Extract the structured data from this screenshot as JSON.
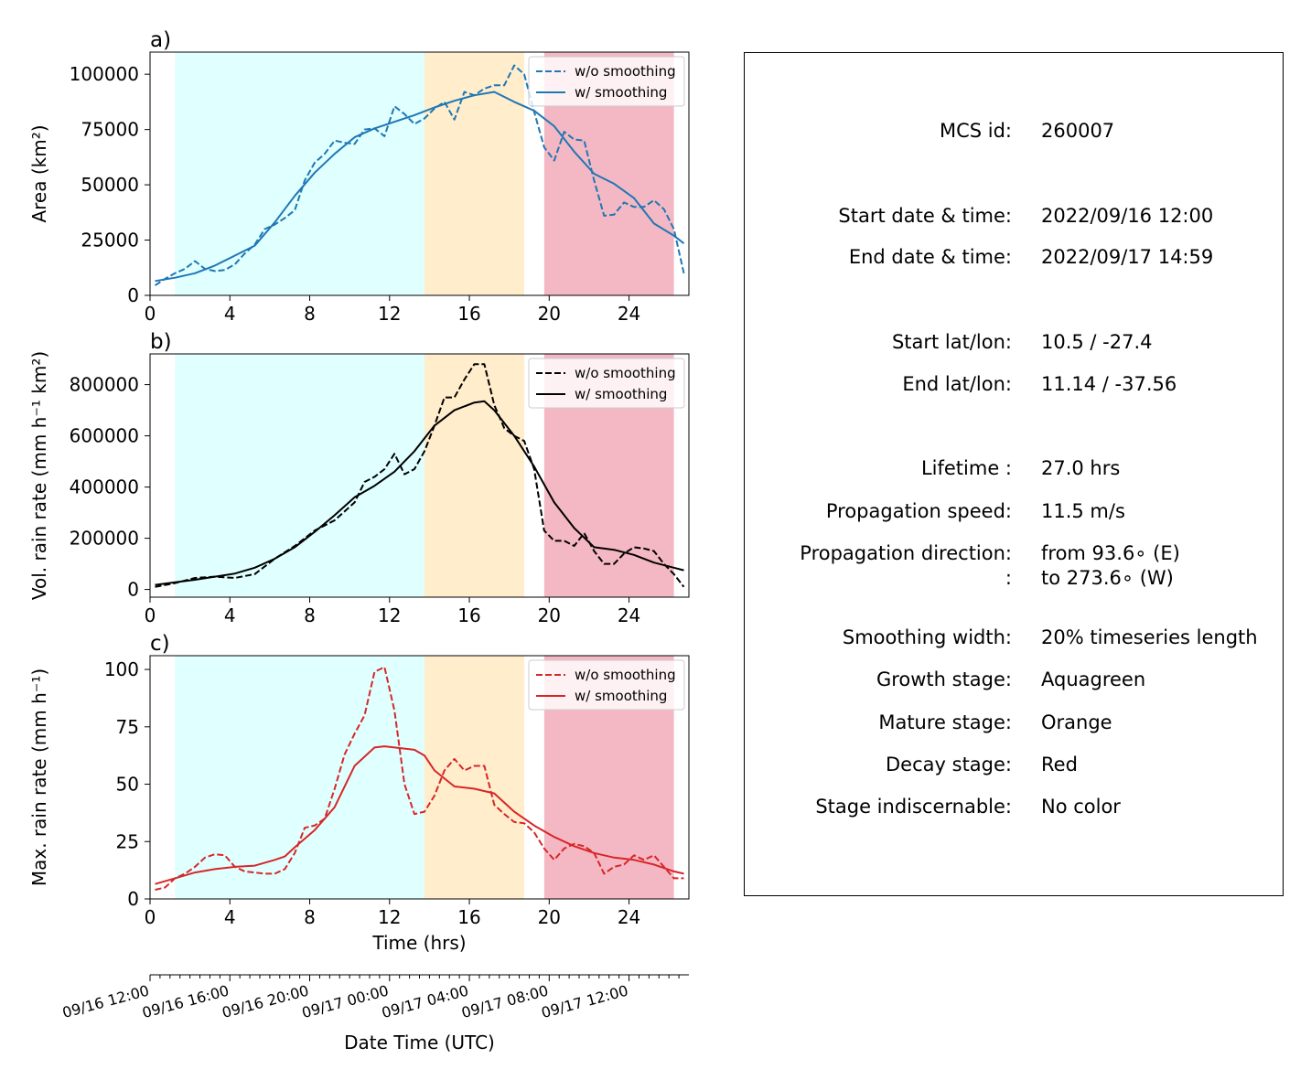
{
  "chart_data": [
    {
      "type": "line",
      "panel_label": "a)",
      "ylabel": "Area  (km²)",
      "xlabel": "",
      "xlim": [
        0,
        27
      ],
      "ylim": [
        0,
        110000
      ],
      "xticks": [
        "0",
        "4",
        "8",
        "12",
        "16",
        "20",
        "24"
      ],
      "yticks": [
        "0",
        "25000",
        "50000",
        "75000",
        "100000"
      ],
      "stages": {
        "growth": [
          1.25,
          13.75
        ],
        "mature": [
          13.75,
          18.75
        ],
        "decay": [
          19.75,
          26.25
        ]
      },
      "legend": "top-right",
      "series": [
        {
          "name": "w/o smoothing",
          "style": "dashed",
          "color": "#1f77b4",
          "x": [
            0.25,
            0.75,
            1.25,
            1.75,
            2.25,
            2.75,
            3.25,
            3.75,
            4.25,
            4.75,
            5.25,
            5.75,
            6.25,
            6.75,
            7.25,
            7.75,
            8.25,
            8.75,
            9.25,
            9.75,
            10.25,
            10.75,
            11.25,
            11.75,
            12.25,
            12.75,
            13.25,
            13.75,
            14.25,
            14.75,
            15.25,
            15.75,
            16.25,
            16.75,
            17.25,
            17.75,
            18.25,
            18.75,
            19.25,
            19.75,
            20.25,
            20.75,
            21.25,
            21.75,
            22.25,
            22.75,
            23.25,
            23.75,
            24.25,
            24.75,
            25.25,
            25.75,
            26.25,
            26.75
          ],
          "y": [
            4500,
            7500,
            10000,
            12000,
            15500,
            12000,
            11000,
            11500,
            14000,
            19000,
            23000,
            30000,
            32000,
            35000,
            38500,
            52000,
            60000,
            64000,
            70000,
            69000,
            68500,
            75000,
            75500,
            72000,
            85500,
            82000,
            77500,
            80000,
            84500,
            87500,
            79500,
            92000,
            90500,
            93500,
            95000,
            95000,
            104000,
            100000,
            83000,
            67000,
            61000,
            74000,
            70500,
            70000,
            52000,
            36000,
            36500,
            42000,
            40000,
            40000,
            43000,
            39000,
            30000,
            10000
          ]
        },
        {
          "name": "w/ smoothing",
          "style": "solid",
          "color": "#1f77b4",
          "x": [
            0.25,
            1.25,
            2.25,
            3.25,
            4.25,
            5.25,
            6.25,
            7.25,
            8.25,
            9.25,
            10.25,
            11.25,
            12.25,
            13.25,
            14.25,
            15.25,
            16.25,
            17.25,
            18.25,
            19.25,
            20.25,
            21.25,
            22.25,
            23.25,
            24.25,
            25.25,
            26.25,
            26.75
          ],
          "y": [
            6500,
            8000,
            10000,
            13500,
            18000,
            22500,
            33000,
            45000,
            55500,
            64000,
            71500,
            75500,
            78500,
            81500,
            85000,
            88000,
            90500,
            92000,
            87500,
            83500,
            76500,
            65000,
            55000,
            50500,
            44000,
            32500,
            27000,
            23500
          ]
        }
      ]
    },
    {
      "type": "line",
      "panel_label": "b)",
      "ylabel": "Vol. rain rate (mm h⁻¹ km²)",
      "xlabel": "",
      "xlim": [
        0,
        27
      ],
      "ylim": [
        -30000,
        920000
      ],
      "xticks": [
        "0",
        "4",
        "8",
        "12",
        "16",
        "20",
        "24"
      ],
      "yticks": [
        "0",
        "200000",
        "400000",
        "600000",
        "800000"
      ],
      "stages": {
        "growth": [
          1.25,
          13.75
        ],
        "mature": [
          13.75,
          18.75
        ],
        "decay": [
          19.75,
          26.25
        ]
      },
      "legend": "top-right",
      "series": [
        {
          "name": "w/o smoothing",
          "style": "dashed",
          "color": "#000000",
          "x": [
            0.25,
            1.25,
            2.25,
            3.25,
            4.25,
            5.25,
            6.25,
            7.25,
            8.25,
            9.25,
            10.25,
            10.75,
            11.25,
            11.75,
            12.25,
            12.75,
            13.25,
            13.75,
            14.25,
            14.75,
            15.25,
            15.75,
            16.25,
            16.75,
            17.25,
            17.75,
            18.25,
            18.75,
            19.25,
            19.75,
            20.25,
            20.75,
            21.25,
            21.75,
            22.25,
            22.75,
            23.25,
            23.75,
            24.25,
            24.75,
            25.25,
            25.75,
            26.25,
            26.75
          ],
          "y": [
            10000,
            25000,
            45000,
            50000,
            45000,
            60000,
            120000,
            170000,
            230000,
            270000,
            340000,
            420000,
            440000,
            470000,
            530000,
            450000,
            470000,
            540000,
            640000,
            750000,
            750000,
            820000,
            880000,
            880000,
            720000,
            630000,
            600000,
            580000,
            470000,
            230000,
            190000,
            190000,
            170000,
            220000,
            150000,
            100000,
            100000,
            140000,
            165000,
            160000,
            150000,
            100000,
            60000,
            10000
          ]
        },
        {
          "name": "w/ smoothing",
          "style": "solid",
          "color": "#000000",
          "x": [
            0.25,
            1.25,
            2.25,
            3.25,
            4.25,
            5.25,
            6.25,
            7.25,
            8.25,
            9.25,
            10.25,
            11.25,
            12.25,
            13.25,
            14.25,
            15.25,
            16.25,
            16.75,
            17.25,
            18.25,
            19.25,
            20.25,
            21.25,
            22.25,
            23.25,
            24.25,
            25.25,
            26.25,
            26.75
          ],
          "y": [
            18000,
            28000,
            38000,
            50000,
            62000,
            85000,
            120000,
            165000,
            225000,
            290000,
            360000,
            405000,
            460000,
            540000,
            640000,
            700000,
            730000,
            735000,
            700000,
            600000,
            480000,
            340000,
            240000,
            165000,
            155000,
            135000,
            105000,
            85000,
            75000
          ]
        }
      ]
    },
    {
      "type": "line",
      "panel_label": "c)",
      "ylabel": "Max. rain rate  (mm h⁻¹)",
      "xlabel": "Time (hrs)",
      "xlim": [
        0,
        27
      ],
      "ylim": [
        0,
        106
      ],
      "xticks": [
        "0",
        "4",
        "8",
        "12",
        "16",
        "20",
        "24"
      ],
      "yticks": [
        "0",
        "25",
        "50",
        "75",
        "100"
      ],
      "stages": {
        "growth": [
          1.25,
          13.75
        ],
        "mature": [
          13.75,
          18.75
        ],
        "decay": [
          19.75,
          26.25
        ]
      },
      "legend": "top-right",
      "series": [
        {
          "name": "w/o smoothing",
          "style": "dashed",
          "color": "#d62728",
          "x": [
            0.25,
            0.75,
            1.25,
            1.75,
            2.25,
            2.75,
            3.25,
            3.75,
            4.25,
            4.75,
            5.25,
            5.75,
            6.25,
            6.75,
            7.25,
            7.75,
            8.25,
            8.75,
            9.25,
            9.75,
            10.25,
            10.75,
            11.25,
            11.75,
            12.25,
            12.75,
            13.25,
            13.75,
            14.25,
            14.75,
            15.25,
            15.75,
            16.25,
            16.75,
            17.25,
            17.75,
            18.25,
            18.75,
            19.25,
            19.75,
            20.25,
            20.75,
            21.25,
            21.75,
            22.25,
            22.75,
            23.25,
            23.75,
            24.25,
            24.75,
            25.25,
            25.75,
            26.25,
            26.75
          ],
          "y": [
            4,
            5,
            9,
            11,
            14,
            18,
            19.5,
            19,
            14,
            12,
            11.5,
            11,
            11,
            13,
            20,
            31,
            32,
            35,
            48,
            63,
            72,
            80,
            99,
            101,
            82,
            50,
            37,
            38,
            45,
            56,
            61,
            56,
            58,
            58,
            41,
            37,
            33.5,
            33,
            29,
            22,
            17,
            22,
            24,
            23,
            20,
            11,
            14,
            15,
            19,
            17,
            19,
            14,
            9,
            9
          ]
        },
        {
          "name": "w/ smoothing",
          "style": "solid",
          "color": "#d62728",
          "x": [
            0.25,
            1.25,
            2.25,
            3.25,
            4.25,
            5.25,
            6.25,
            6.75,
            7.25,
            8.25,
            9.25,
            10.25,
            11.25,
            11.75,
            12.25,
            13.25,
            13.75,
            14.25,
            15.25,
            16.25,
            17.25,
            18.25,
            19.25,
            20.25,
            21.25,
            22.25,
            23.25,
            24.25,
            25.25,
            26.25,
            26.75
          ],
          "y": [
            6.5,
            9,
            11.5,
            13,
            14,
            14.5,
            17,
            18.5,
            22.5,
            30,
            40,
            58,
            66,
            66.5,
            66,
            65,
            62.5,
            56,
            49,
            48,
            46,
            38,
            32,
            27,
            23,
            20,
            18,
            17,
            15,
            12,
            11
          ]
        }
      ]
    }
  ],
  "datetime_axis": {
    "xlabel": "Date Time (UTC)",
    "tick_labels": [
      {
        "t": 0,
        "label": "09/16 12:00"
      },
      {
        "t": 4,
        "label": "09/16 16:00"
      },
      {
        "t": 8,
        "label": "09/16 20:00"
      },
      {
        "t": 12,
        "label": "09/17 00:00"
      },
      {
        "t": 16,
        "label": "09/17 04:00"
      },
      {
        "t": 20,
        "label": "09/17 08:00"
      },
      {
        "t": 24,
        "label": "09/17 12:00"
      }
    ]
  },
  "info_panel": {
    "mcs_id": {
      "label": "MCS id:",
      "value": "260007"
    },
    "start_time": {
      "label": "Start date & time:",
      "value": "2022/09/16 12:00"
    },
    "end_time": {
      "label": "End date & time:",
      "value": "2022/09/17 14:59"
    },
    "start_latlon": {
      "label": "Start lat/lon:",
      "value": "10.5 / -27.4"
    },
    "end_latlon": {
      "label": "End lat/lon:",
      "value": "11.14 / -37.56"
    },
    "lifetime": {
      "label": "Lifetime :",
      "value": "27.0 hrs"
    },
    "speed": {
      "label": "Propagation speed:",
      "value": "11.5 m/s"
    },
    "direction": {
      "label": "Propagation direction:",
      "value": "from  93.6∘ (E)"
    },
    "direction2": {
      "label": ":",
      "value": "to   273.6∘ (W)"
    },
    "smoothing": {
      "label": "Smoothing width:",
      "value": "20% timeseries length"
    },
    "growth": {
      "label": "Growth stage:",
      "value": "Aquagreen"
    },
    "mature": {
      "label": "Mature stage:",
      "value": "Orange"
    },
    "decay": {
      "label": "Decay stage:",
      "value": "Red"
    },
    "indiscernable": {
      "label": "Stage indiscernable:",
      "value": "No color"
    }
  },
  "colors": {
    "growth_fill": "#e0ffff",
    "mature_fill": "#ffedcc",
    "decay_fill": "#f4b8c4"
  }
}
